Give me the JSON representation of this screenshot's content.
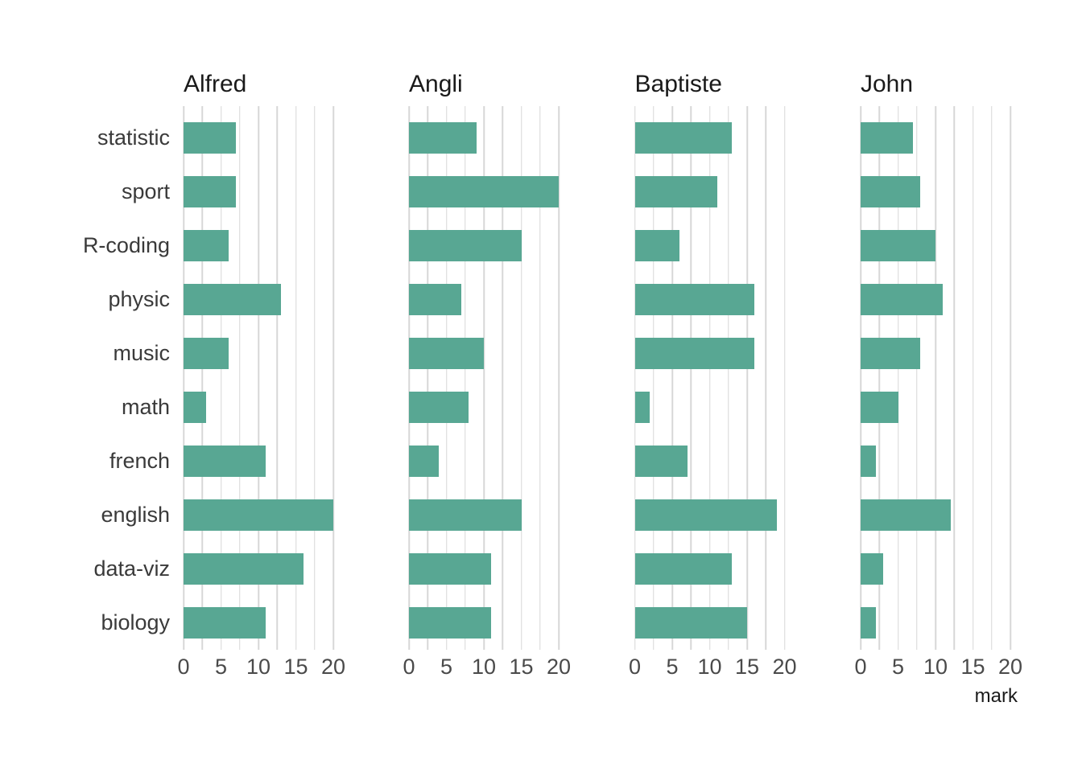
{
  "chart_data": {
    "type": "bar",
    "orientation": "horizontal",
    "title": "",
    "xlabel": "mark",
    "ylabel": "",
    "xlim": [
      0,
      20
    ],
    "xticks": [
      "0",
      "5",
      "10",
      "15",
      "20"
    ],
    "gridline_step": 2.5,
    "grid": "vertical-only",
    "legend": "none",
    "bar_color": "#58a793",
    "gridline_color": "#d7d7d7",
    "facets": [
      "Alfred",
      "Angli",
      "Baptiste",
      "John"
    ],
    "categories": [
      "statistic",
      "sport",
      "R-coding",
      "physic",
      "music",
      "math",
      "french",
      "english",
      "data-viz",
      "biology"
    ],
    "series": [
      {
        "name": "Alfred",
        "values": [
          7,
          7,
          6,
          13,
          6,
          3,
          11,
          20,
          16,
          11
        ]
      },
      {
        "name": "Angli",
        "values": [
          9,
          20,
          15,
          7,
          10,
          8,
          4,
          15,
          11,
          11
        ]
      },
      {
        "name": "Baptiste",
        "values": [
          13,
          11,
          6,
          16,
          16,
          2,
          7,
          19,
          13,
          15
        ]
      },
      {
        "name": "John",
        "values": [
          7,
          8,
          10,
          11,
          8,
          5,
          2,
          12,
          3,
          2
        ]
      }
    ]
  }
}
